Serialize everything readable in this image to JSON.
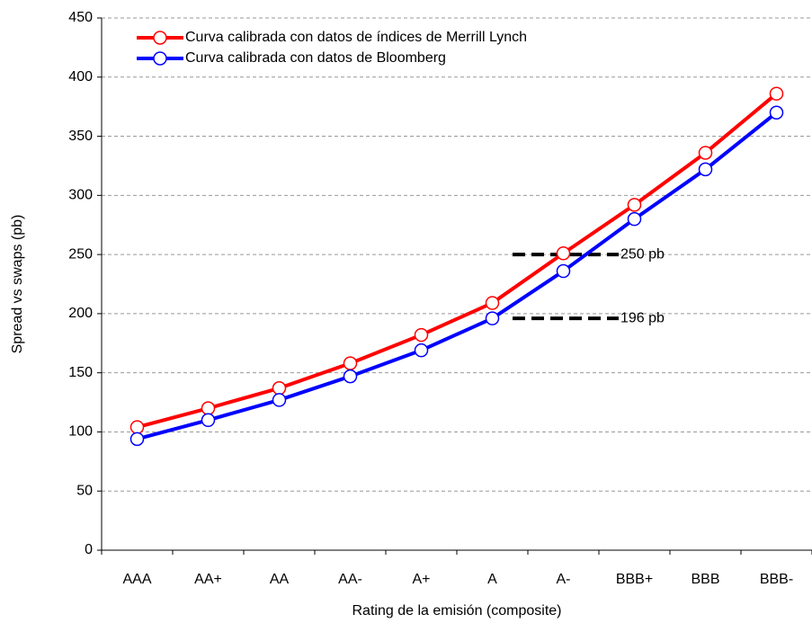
{
  "chart_data": {
    "type": "line",
    "x_label": "Rating de la emisión (composite)",
    "y_label": "Spread vs swaps (pb)",
    "categories": [
      "AAA",
      "AA+",
      "AA",
      "AA-",
      "A+",
      "A",
      "A-",
      "BBB+",
      "BBB",
      "BBB-"
    ],
    "series": [
      {
        "name": "Curva calibrada con datos de índices de Merrill Lynch",
        "color": "#ff0000",
        "values": [
          104,
          120,
          137,
          158,
          182,
          209,
          251,
          292,
          336,
          386
        ]
      },
      {
        "name": "Curva calibrada con datos de Bloomberg",
        "color": "#0000ff",
        "values": [
          94,
          110,
          127,
          147,
          169,
          196,
          236,
          280,
          322,
          370
        ]
      }
    ],
    "annotations": [
      {
        "text": "250 pb",
        "value": 250
      },
      {
        "text": "196 pb",
        "value": 196
      }
    ],
    "ylim": [
      0,
      450
    ],
    "yticks": [
      0,
      50,
      100,
      150,
      200,
      250,
      300,
      350,
      400,
      450
    ],
    "grid": true,
    "legend": "upper left"
  }
}
